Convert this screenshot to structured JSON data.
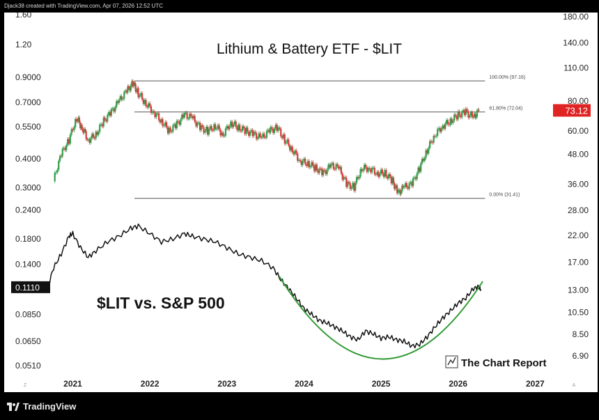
{
  "topbar": {
    "caption": "Djack38 created with TradingView.com, Apr 07, 2026 12:52 UTC"
  },
  "footer": {
    "brand": "TradingView"
  },
  "colors": {
    "up": "#2e9e4a",
    "down": "#d43c3c",
    "ratio_line": "#111111",
    "bowl": "#2f9a34",
    "fib_line": "#555555",
    "price_badge_bg": "#e02424",
    "ratio_badge_bg": "#111111"
  },
  "chart_data": {
    "type": "line",
    "title": "Lithium & Battery ETF - $LIT",
    "annotation": "$LIT vs. S&P 500",
    "watermark": "The Chart Report",
    "x_ticks": [
      "2021",
      "2022",
      "2023",
      "2024",
      "2025",
      "2026",
      "2027"
    ],
    "x_range": [
      2020.67,
      2027.25
    ],
    "left_axis": {
      "scale": "log",
      "ticks": [
        "1.60",
        "1.20",
        "0.9000",
        "0.7000",
        "0.5500",
        "0.4000",
        "0.3000",
        "0.2400",
        "0.1800",
        "0.1400",
        "0.1110",
        "0.0850",
        "0.0650",
        "0.0510"
      ],
      "current": "0.1110"
    },
    "right_axis": {
      "scale": "log",
      "ticks": [
        "180.00",
        "140.00",
        "110.00",
        "80.00",
        "60.00",
        "48.00",
        "36.00",
        "28.00",
        "22.00",
        "17.00",
        "13.00",
        "10.50",
        "8.50",
        "6.90"
      ],
      "current": "73.12"
    },
    "fibonacci": {
      "start": 2021.8,
      "end": 2026.35,
      "levels": [
        {
          "label": "100.00% (97.16)",
          "value": 97.16
        },
        {
          "label": "61.80% (72.04)",
          "value": 72.04
        },
        {
          "label": "0.00% (31.41)",
          "value": 31.41
        }
      ]
    },
    "series": [
      {
        "name": "LIT",
        "kind": "candlestick",
        "x": [
          2020.75,
          2020.85,
          2020.95,
          2021.05,
          2021.12,
          2021.2,
          2021.3,
          2021.4,
          2021.5,
          2021.6,
          2021.7,
          2021.78,
          2021.85,
          2021.95,
          2022.05,
          2022.15,
          2022.25,
          2022.35,
          2022.45,
          2022.55,
          2022.65,
          2022.75,
          2022.85,
          2022.95,
          2023.05,
          2023.15,
          2023.25,
          2023.35,
          2023.45,
          2023.55,
          2023.65,
          2023.75,
          2023.85,
          2023.95,
          2024.05,
          2024.15,
          2024.25,
          2024.35,
          2024.45,
          2024.55,
          2024.65,
          2024.75,
          2024.85,
          2024.95,
          2025.05,
          2025.15,
          2025.22,
          2025.3,
          2025.4,
          2025.5,
          2025.6,
          2025.7,
          2025.8,
          2025.9,
          2026.0,
          2026.1,
          2026.2,
          2026.27
        ],
        "close": [
          37,
          48,
          55,
          68,
          62,
          55,
          58,
          66,
          72,
          80,
          88,
          95,
          86,
          78,
          72,
          66,
          60,
          64,
          70,
          68,
          62,
          60,
          63,
          58,
          65,
          62,
          60,
          58,
          56,
          60,
          62,
          55,
          50,
          45,
          44,
          42,
          40,
          43,
          42,
          36,
          35,
          42,
          42,
          40,
          40,
          37,
          33,
          35,
          36,
          42,
          50,
          58,
          63,
          66,
          70,
          72,
          68,
          73
        ]
      },
      {
        "name": "$LIT vs. S&P 500",
        "kind": "line",
        "x": [
          2020.67,
          2020.75,
          2020.85,
          2020.95,
          2021.0,
          2021.1,
          2021.2,
          2021.3,
          2021.45,
          2021.6,
          2021.75,
          2021.85,
          2022.0,
          2022.15,
          2022.3,
          2022.45,
          2022.55,
          2022.7,
          2022.85,
          2023.0,
          2023.15,
          2023.3,
          2023.45,
          2023.6,
          2023.7,
          2023.8,
          2023.9,
          2024.0,
          2024.1,
          2024.2,
          2024.3,
          2024.4,
          2024.5,
          2024.6,
          2024.7,
          2024.8,
          2024.9,
          2025.0,
          2025.1,
          2025.2,
          2025.3,
          2025.4,
          2025.5,
          2025.6,
          2025.7,
          2025.8,
          2025.9,
          2026.0,
          2026.1,
          2026.2,
          2026.27,
          2026.3
        ],
        "values": [
          0.11,
          0.135,
          0.155,
          0.185,
          0.19,
          0.165,
          0.15,
          0.16,
          0.175,
          0.185,
          0.2,
          0.205,
          0.19,
          0.175,
          0.18,
          0.19,
          0.185,
          0.18,
          0.175,
          0.165,
          0.155,
          0.15,
          0.145,
          0.135,
          0.12,
          0.11,
          0.1,
          0.09,
          0.085,
          0.08,
          0.078,
          0.075,
          0.072,
          0.068,
          0.066,
          0.072,
          0.07,
          0.067,
          0.068,
          0.066,
          0.065,
          0.062,
          0.063,
          0.068,
          0.075,
          0.082,
          0.088,
          0.095,
          0.1,
          0.11,
          0.112,
          0.108
        ]
      }
    ],
    "trend_arc": {
      "x": [
        2023.68,
        2025.0,
        2026.32
      ],
      "values": [
        0.124,
        0.0545,
        0.118
      ]
    }
  }
}
